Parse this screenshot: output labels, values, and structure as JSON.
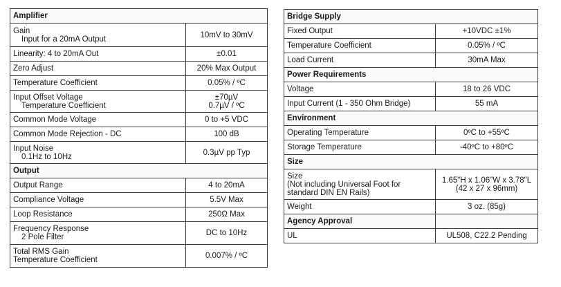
{
  "left_table": {
    "rows": [
      {
        "type": "section",
        "label": "Amplifier"
      },
      {
        "label": "Gain",
        "sublabel": "Input for a 20mA Output",
        "value": "10mV to 30mV",
        "h": 34
      },
      {
        "label": "Linearity: 4 to 20mA Out",
        "value": "±0.01",
        "h": 21
      },
      {
        "label": "Zero Adjust",
        "value": "20% Max Output",
        "h": 21
      },
      {
        "label": "Temperature Coefficient",
        "value": "0.05% / ºC",
        "h": 21
      },
      {
        "label": "Input Offset Voltage",
        "sublabel": "Temperature Coefficient",
        "value": "±70µV",
        "value2": "0.7µV / ºC",
        "h": 32
      },
      {
        "label": "Common Mode Voltage",
        "value": "0 to +5 VDC",
        "h": 21
      },
      {
        "label": "Common Mode Rejection - DC",
        "value": "100 dB",
        "h": 21
      },
      {
        "label": "Input Noise",
        "sublabel": "0.1Hz to 10Hz",
        "value": "0.3µV pp Typ",
        "h": 32
      },
      {
        "type": "section",
        "label": "Output"
      },
      {
        "label": "Output Range",
        "value": "4 to 20mA",
        "h": 21
      },
      {
        "label": "Compliance Voltage",
        "value": "5.5V Max",
        "h": 21
      },
      {
        "label": "Loop Resistance",
        "value": "250Ω Max",
        "h": 21
      },
      {
        "label": "Frequency Response",
        "sublabel": "2 Pole Filter",
        "value": "DC to 10Hz",
        "h": 33
      },
      {
        "label": "Total RMS Gain",
        "sublabel": "Temperature Coefficient",
        "sub_flush": true,
        "value": "0.007% / ºC",
        "h": 33
      }
    ]
  },
  "right_table": {
    "rows": [
      {
        "type": "section",
        "label": "Bridge Supply"
      },
      {
        "label": "Fixed Output",
        "value": "+10VDC ±1%",
        "h": 21
      },
      {
        "label": "Temperature Coefficient",
        "value": "0.05% / ºC",
        "h": 21
      },
      {
        "label": "Load Current",
        "value": "30mA Max",
        "h": 21
      },
      {
        "type": "section",
        "label": "Power Requirements"
      },
      {
        "label": "Voltage",
        "value": "18 to 26 VDC",
        "h": 21
      },
      {
        "label": "Input Current (1 - 350 Ohm Bridge)",
        "value": "55 mA",
        "h": 21
      },
      {
        "type": "section",
        "label": "Environment"
      },
      {
        "label": "Operating Temperature",
        "value": "0ºC to +55ºC",
        "h": 21
      },
      {
        "label": "Storage Temperature",
        "value": "-40ºC to +80ºC",
        "h": 21
      },
      {
        "type": "section",
        "label": "Size"
      },
      {
        "label": "Size",
        "sublabel": "(Not including Universal Foot for",
        "sublabel2": "standard DIN EN Rails)",
        "sub_flush": true,
        "value": "1.65\"H x 1.06\"W x 3.78\"L",
        "value2": "(42 x 27 x 96mm)",
        "h": 44
      },
      {
        "label": "Weight",
        "value": "3 oz. (85g)",
        "h": 21
      },
      {
        "type": "section",
        "label": "Agency Approval",
        "blank_value": true
      },
      {
        "label": "UL",
        "value": "UL508, C22.2 Pending",
        "h": 21
      }
    ]
  }
}
